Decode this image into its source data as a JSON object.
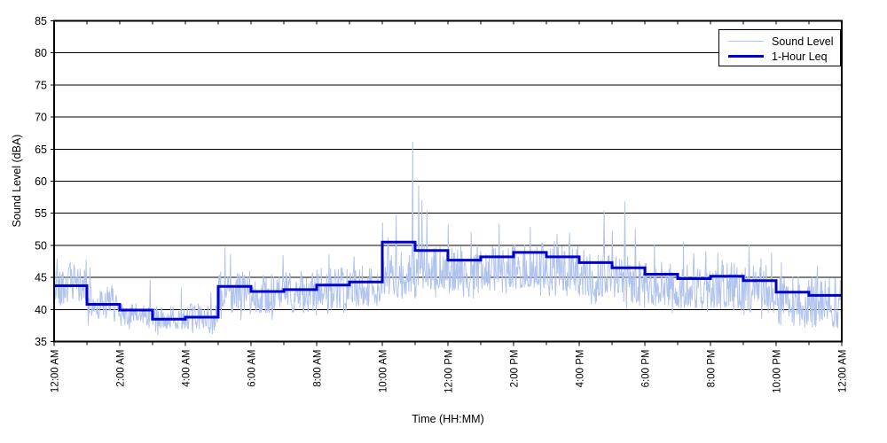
{
  "figure": {
    "background": "#ffffff"
  },
  "colors": {
    "axis": "#000000",
    "grid": "#000000",
    "sound_level_line": "#b0c3ee",
    "leq_line": "#0000cc",
    "plot_background": "#ffffff"
  },
  "chart_data": {
    "type": "line",
    "title": "",
    "xlabel": "Time (HH:MM)",
    "ylabel": "Sound Level (dBA)",
    "ylim": [
      35,
      85
    ],
    "yticks": [
      35,
      40,
      45,
      50,
      55,
      60,
      65,
      70,
      75,
      80,
      85
    ],
    "xlim_hours": [
      0,
      24
    ],
    "xtick_hours": [
      0,
      2,
      4,
      6,
      8,
      10,
      12,
      14,
      16,
      18,
      20,
      22,
      24
    ],
    "xtick_labels": [
      "12:00 AM",
      "2:00 AM",
      "4:00 AM",
      "6:00 AM",
      "8:00 AM",
      "10:00 AM",
      "12:00 PM",
      "2:00 PM",
      "4:00 PM",
      "6:00 PM",
      "8:00 PM",
      "10:00 PM",
      "12:00 AM"
    ],
    "minor_xtick_every_hours": 1,
    "grid": "horizontal-only",
    "legend": {
      "position": "top-right",
      "entries": [
        {
          "label": "Sound Level",
          "color": "#b0c3ee",
          "line_width": 1.5
        },
        {
          "label": "1-Hour Leq",
          "color": "#0000cc",
          "line_width": 3
        }
      ]
    },
    "series": [
      {
        "name": "Sound Level",
        "type": "noisy-trace",
        "color": "#b0c3ee",
        "points_per_hour": 60,
        "seed": 42,
        "hourly_band": [
          {
            "lo": 41.0,
            "hi": 47.0,
            "spike": 48.0
          },
          {
            "lo": 38.5,
            "hi": 43.5,
            "spike": 46.5
          },
          {
            "lo": 37.5,
            "hi": 41.0,
            "spike": 44.0
          },
          {
            "lo": 37.0,
            "hi": 40.5,
            "spike": 44.5
          },
          {
            "lo": 37.0,
            "hi": 41.0,
            "spike": 45.0
          },
          {
            "lo": 39.5,
            "hi": 46.0,
            "spike": 49.6
          },
          {
            "lo": 39.5,
            "hi": 45.5,
            "spike": 48.4
          },
          {
            "lo": 39.5,
            "hi": 46.0,
            "spike": 48.0
          },
          {
            "lo": 40.0,
            "hi": 46.5,
            "spike": 48.6
          },
          {
            "lo": 40.5,
            "hi": 47.0,
            "spike": 51.0
          },
          {
            "lo": 42.0,
            "hi": 49.0,
            "spike": 53.0
          },
          {
            "lo": 43.0,
            "hi": 50.0,
            "spike": 55.0
          },
          {
            "lo": 43.0,
            "hi": 50.0,
            "spike": 53.0
          },
          {
            "lo": 43.5,
            "hi": 50.0,
            "spike": 52.5
          },
          {
            "lo": 43.0,
            "hi": 50.5,
            "spike": 53.5
          },
          {
            "lo": 43.0,
            "hi": 50.0,
            "spike": 52.5
          },
          {
            "lo": 42.0,
            "hi": 49.5,
            "spike": 52.0
          },
          {
            "lo": 41.0,
            "hi": 48.5,
            "spike": 52.5
          },
          {
            "lo": 40.5,
            "hi": 47.5,
            "spike": 50.5
          },
          {
            "lo": 40.0,
            "hi": 47.0,
            "spike": 49.5
          },
          {
            "lo": 40.0,
            "hi": 47.5,
            "spike": 50.0
          },
          {
            "lo": 39.5,
            "hi": 47.0,
            "spike": 49.5
          },
          {
            "lo": 37.5,
            "hi": 45.5,
            "spike": 47.5
          },
          {
            "lo": 37.0,
            "hi": 45.0,
            "spike": 47.0
          }
        ],
        "notable_extremes_minute_dba": [
          [
            5,
            47.9
          ],
          [
            65,
            46.5
          ],
          [
            175,
            44.6
          ],
          [
            292,
            36.8
          ],
          [
            312,
            49.6
          ],
          [
            418,
            48.4
          ],
          [
            502,
            48.5
          ],
          [
            548,
            48.2
          ],
          [
            600,
            53.5
          ],
          [
            625,
            54.8
          ],
          [
            655,
            66.1
          ],
          [
            666,
            59.3
          ],
          [
            672,
            57.0
          ],
          [
            681,
            55.3
          ],
          [
            720,
            53.2
          ],
          [
            762,
            52.0
          ],
          [
            813,
            53.3
          ],
          [
            870,
            52.8
          ],
          [
            1005,
            55.4
          ],
          [
            1043,
            56.8
          ],
          [
            1062,
            52.5
          ],
          [
            1150,
            50.5
          ],
          [
            1270,
            50.0
          ],
          [
            1329,
            47.3
          ],
          [
            1395,
            46.8
          ]
        ]
      },
      {
        "name": "1-Hour Leq",
        "type": "stairs",
        "color": "#0000cc",
        "hourly_values": [
          43.7,
          40.8,
          39.9,
          38.5,
          38.8,
          43.6,
          42.8,
          43.1,
          43.8,
          44.3,
          50.5,
          49.2,
          47.7,
          48.2,
          48.9,
          48.2,
          47.3,
          46.5,
          45.5,
          44.8,
          45.2,
          44.5,
          42.7,
          42.2
        ]
      }
    ]
  }
}
